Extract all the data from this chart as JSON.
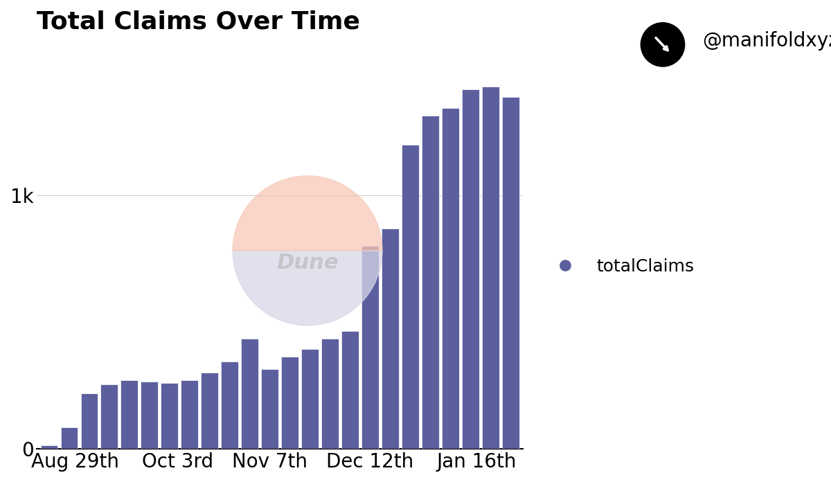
{
  "title": "Total Claims Over Time",
  "watermark_text": "@manifoldxyz",
  "legend_label": "totalClaims",
  "bar_color": "#5C5F9E",
  "background_color": "#ffffff",
  "grid_color": "#cccccc",
  "x_tick_labels": [
    "Aug 29th",
    "Oct 3rd",
    "Nov 7th",
    "Dec 12th",
    "Jan 16th"
  ],
  "xtick_positions": [
    1.3,
    6.4,
    11.0,
    16.0,
    21.3
  ],
  "ylim": [
    0,
    1600
  ],
  "yticks": [
    0,
    1000
  ],
  "ytick_labels": [
    "0",
    "1k"
  ],
  "bar_values": [
    15,
    85,
    220,
    255,
    270,
    265,
    260,
    270,
    300,
    345,
    435,
    315,
    365,
    395,
    435,
    465,
    800,
    870,
    1200,
    1315,
    1345,
    1420,
    1430,
    1390
  ],
  "dune_circle_top_color": "#f7c9b8",
  "dune_circle_bot_color": "#d8d8e8",
  "dune_text_color": "#aaaaaa",
  "title_fontsize": 26,
  "axis_fontsize": 20,
  "legend_fontsize": 18,
  "bar_width": 0.85
}
